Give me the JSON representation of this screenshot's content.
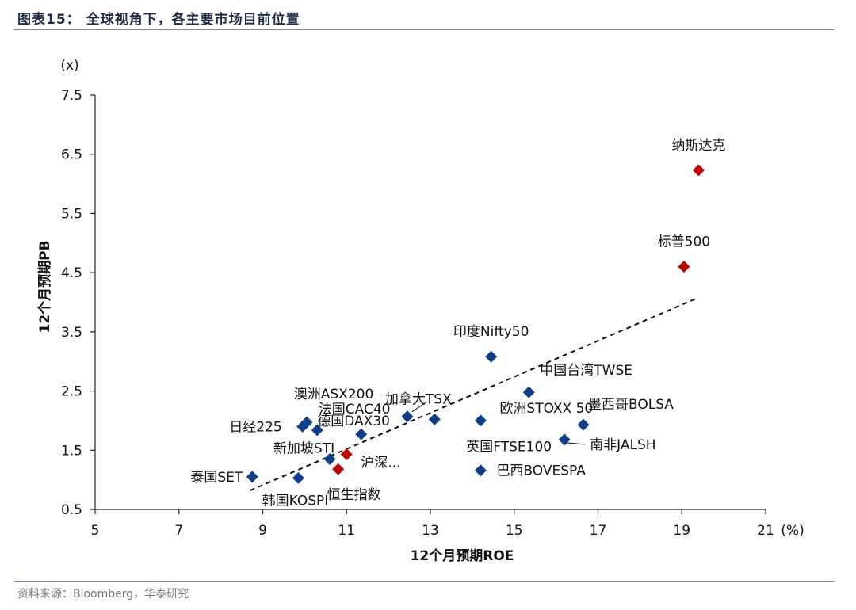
{
  "header": {
    "title": "图表15：  全球视角下，各主要市场目前位置"
  },
  "source": "资料来源：Bloomberg，华泰研究",
  "chart_data": {
    "type": "scatter",
    "xlabel": "12个月预期ROE",
    "ylabel": "12个月预期PB",
    "x_unit": "(%)",
    "y_unit": "(x)",
    "xlim": [
      5,
      21
    ],
    "ylim": [
      0.5,
      7.5
    ],
    "xticks": [
      "5",
      "7",
      "9",
      "11",
      "13",
      "15",
      "17",
      "19",
      "21"
    ],
    "yticks": [
      "0.5",
      "1.5",
      "2.5",
      "3.5",
      "4.5",
      "5.5",
      "6.5",
      "7.5"
    ],
    "trendline": {
      "style": "dashed",
      "from": [
        8.7,
        0.82
      ],
      "to": [
        19.4,
        4.08
      ]
    },
    "colors": {
      "blue": "#0f3d8a",
      "red": "#c00000"
    },
    "points": [
      {
        "label": "纳斯达克",
        "x": 19.4,
        "y": 6.23,
        "color": "red"
      },
      {
        "label": "标普500",
        "x": 19.05,
        "y": 4.6,
        "color": "red"
      },
      {
        "label": "印度Nifty50",
        "x": 14.45,
        "y": 3.08,
        "color": "blue"
      },
      {
        "label": "中国台湾TWSE",
        "x": 15.35,
        "y": 2.48,
        "color": "blue"
      },
      {
        "label": "墨西哥BOLSA",
        "x": 16.65,
        "y": 1.93,
        "color": "blue"
      },
      {
        "label": "南非JALSH",
        "x": 16.2,
        "y": 1.68,
        "color": "blue"
      },
      {
        "label": "欧洲STOXX 50",
        "x": 14.2,
        "y": 2.0,
        "color": "blue"
      },
      {
        "label": "英国FTSE100",
        "x": 13.1,
        "y": 2.02,
        "color": "blue"
      },
      {
        "label": "巴西BOVESPA",
        "x": 14.2,
        "y": 1.16,
        "color": "blue"
      },
      {
        "label": "加拿大TSX",
        "x": 12.45,
        "y": 2.07,
        "color": "blue"
      },
      {
        "label": "法国CAC40",
        "x": 11.35,
        "y": 1.77,
        "color": "blue"
      },
      {
        "label": "德国DAX30",
        "x": 10.3,
        "y": 1.84,
        "color": "blue"
      },
      {
        "label": "澳洲ASX200",
        "x": 10.05,
        "y": 1.97,
        "color": "blue"
      },
      {
        "label": "日经225",
        "x": 9.95,
        "y": 1.9,
        "color": "blue"
      },
      {
        "label": "新加坡STI",
        "x": 10.6,
        "y": 1.35,
        "color": "blue"
      },
      {
        "label": "沪深...",
        "x": 11.0,
        "y": 1.43,
        "color": "red"
      },
      {
        "label": "恒生指数",
        "x": 10.8,
        "y": 1.18,
        "color": "red"
      },
      {
        "label": "韩国KOSPI",
        "x": 9.85,
        "y": 1.03,
        "color": "blue"
      },
      {
        "label": "泰国SET",
        "x": 8.75,
        "y": 1.05,
        "color": "blue"
      }
    ]
  }
}
